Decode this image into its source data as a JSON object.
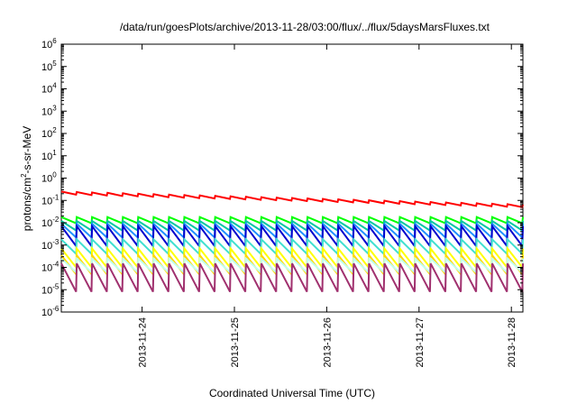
{
  "chart_data": {
    "type": "line",
    "title": "/data/run/goesPlots/archive/2013-11-28/03:00/flux/../flux/5daysMarsFluxes.txt",
    "xlabel": "Coordinated Universal Time (UTC)",
    "ylabel": {
      "prefix": "protons/cm",
      "superscript": "2",
      "suffix": "-s-sr-MeV"
    },
    "yscale": "log",
    "ylim_exponents": [
      -6,
      6
    ],
    "ytick_base": "10",
    "ytick_exponents": [
      "-6",
      "-5",
      "-4",
      "-3",
      "-2",
      "-1",
      "0",
      "1",
      "2",
      "3",
      "4",
      "5",
      "6"
    ],
    "xlim": [
      "2013-11-23T03:00",
      "2013-11-28T03:00"
    ],
    "x_ticks": [
      {
        "label": "2013-11-24",
        "date": "2013-11-24T00:00"
      },
      {
        "label": "2013-11-25",
        "date": "2013-11-25T00:00"
      },
      {
        "label": "2013-11-26",
        "date": "2013-11-26T00:00"
      },
      {
        "label": "2013-11-27",
        "date": "2013-11-27T00:00"
      },
      {
        "label": "2013-11-28",
        "date": "2013-11-28T00:00"
      }
    ],
    "cycles_per_day": 6,
    "grid": false,
    "series": [
      {
        "color": "#ff0000",
        "peak_start": 0.25,
        "trough_start": 0.19,
        "peak_end": 0.065,
        "trough_end": 0.05
      },
      {
        "color": "#00ff00",
        "peak_start": 0.018,
        "trough_start": 0.0095,
        "peak_end": 0.018,
        "trough_end": 0.0095
      },
      {
        "color": "#00c8a0",
        "peak_start": 0.012,
        "trough_start": 0.0045,
        "peak_end": 0.012,
        "trough_end": 0.0045
      },
      {
        "color": "#1e90ff",
        "peak_start": 0.009,
        "trough_start": 0.0022,
        "peak_end": 0.009,
        "trough_end": 0.0022
      },
      {
        "color": "#0000cd",
        "peak_start": 0.007,
        "trough_start": 0.0009,
        "peak_end": 0.007,
        "trough_end": 0.0009
      },
      {
        "color": "#40e0d0",
        "peak_start": 0.0018,
        "trough_start": 0.0004,
        "peak_end": 0.0018,
        "trough_end": 0.0004
      },
      {
        "color": "#ffff00",
        "peak_start": 0.0007,
        "trough_start": 0.0001,
        "peak_end": 0.0007,
        "trough_end": 0.0001
      },
      {
        "color": "#ffd700",
        "peak_start": 0.00035,
        "trough_start": 5e-05,
        "peak_end": 0.00035,
        "trough_end": 5e-05
      },
      {
        "color": "#c0ffee",
        "peak_start": 0.00025,
        "trough_start": 6e-05,
        "peak_end": 0.00025,
        "trough_end": 6e-05
      },
      {
        "color": "#a0306e",
        "peak_start": 0.00015,
        "trough_start": 8e-06,
        "peak_end": 0.00015,
        "trough_end": 8e-06
      }
    ]
  }
}
